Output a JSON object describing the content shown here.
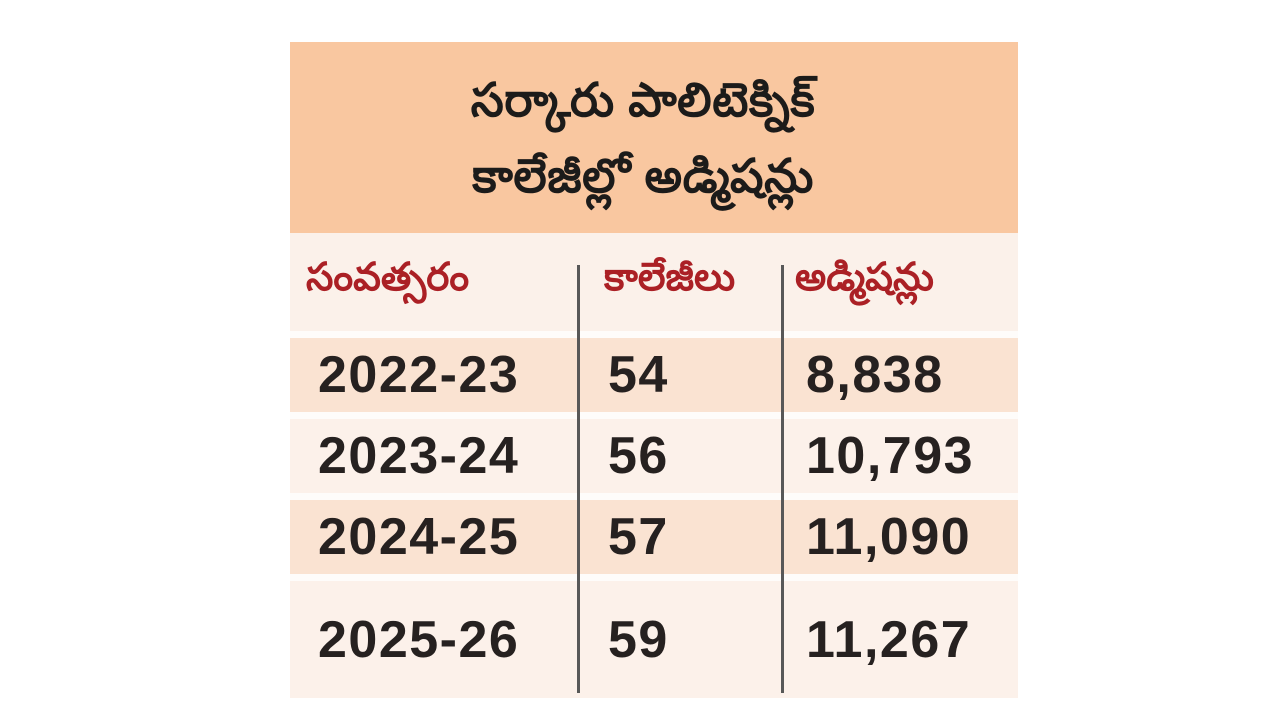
{
  "panel": {
    "header": {
      "title_line1": "సర్కారు పాలిటెక్నిక్",
      "title_line2": "కాలేజీల్లో అడ్మిషన్లు",
      "background": "#f9c7a0",
      "text_color": "#1c1b1a"
    },
    "table": {
      "columns": [
        "సంవత్సరం",
        "కాలేజీలు",
        "అడ్మిషన్లు"
      ],
      "rows": [
        {
          "year": "2022-23",
          "colleges": "54",
          "admissions": "8,838"
        },
        {
          "year": "2023-24",
          "colleges": "56",
          "admissions": "10,793"
        },
        {
          "year": "2024-25",
          "colleges": "57",
          "admissions": "11,090"
        },
        {
          "year": "2025-26",
          "colleges": "59",
          "admissions": "11,267"
        }
      ],
      "header_text_color": "#ab2025",
      "row_bg_dark": "#fae3d2",
      "row_bg_light": "#fcf1ea",
      "header_row_bg": "#fbf1ea",
      "divider_color": "#585858"
    }
  },
  "chart_data": {
    "type": "table",
    "title": "సర్కారు పాలిటెక్నిక్ కాలేజీల్లో అడ్మిషన్లు",
    "columns": [
      "సంవత్సరం",
      "కాలేజీలు",
      "అడ్మిషన్లు"
    ],
    "rows": [
      [
        "2022-23",
        54,
        8838
      ],
      [
        "2023-24",
        56,
        10793
      ],
      [
        "2024-25",
        57,
        11090
      ],
      [
        "2025-26",
        59,
        11267
      ]
    ],
    "notes": "Government polytechnic college admissions by academic year; columns = year, number of colleges, admissions count"
  }
}
